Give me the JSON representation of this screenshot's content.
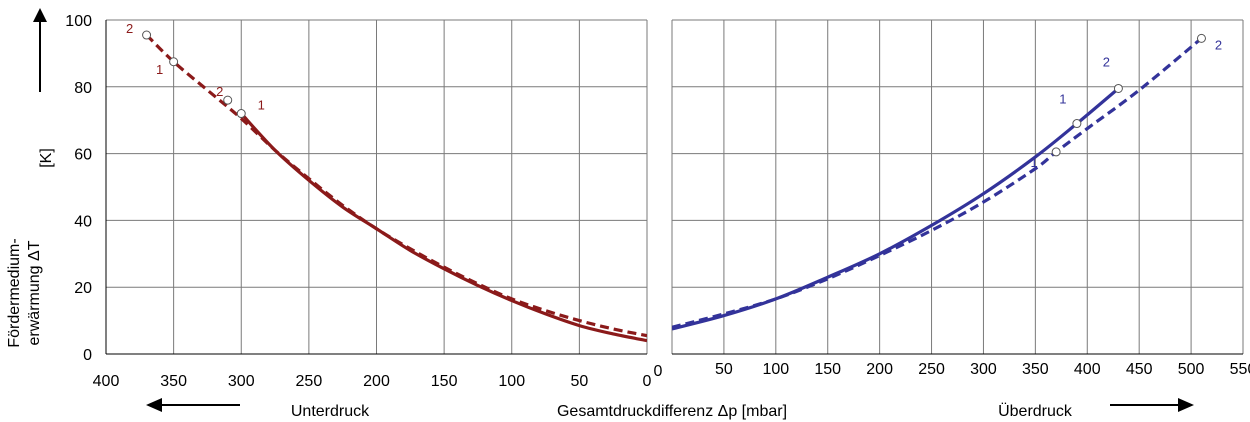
{
  "chart_data": [
    {
      "type": "line",
      "region": "unterdruck",
      "x_axis": {
        "range": [
          400,
          0
        ],
        "ticks": [
          400,
          350,
          300,
          250,
          200,
          150,
          100,
          50,
          0
        ],
        "reversed": true
      },
      "y_axis": {
        "range": [
          0,
          100
        ],
        "ticks": [
          0,
          20,
          40,
          60,
          80,
          100
        ]
      },
      "grid": true,
      "color": "#8B1A1A",
      "series": [
        {
          "style": "solid",
          "points": [
            [
              300,
              72
            ],
            [
              275,
              61
            ],
            [
              250,
              52
            ],
            [
              225,
              44
            ],
            [
              200,
              37.5
            ],
            [
              175,
              31
            ],
            [
              150,
              25.5
            ],
            [
              125,
              20.5
            ],
            [
              100,
              16
            ],
            [
              75,
              12
            ],
            [
              50,
              8.5
            ],
            [
              25,
              6
            ],
            [
              0,
              4
            ]
          ],
          "markers": [
            {
              "x": 300,
              "y": 72,
              "label": "1"
            },
            {
              "x": 310,
              "y": 76,
              "label": "2"
            }
          ]
        },
        {
          "style": "dashed",
          "points": [
            [
              370,
              95.5
            ],
            [
              350,
              87.5
            ],
            [
              325,
              79
            ],
            [
              300,
              70.5
            ],
            [
              275,
              61
            ],
            [
              250,
              52.5
            ],
            [
              225,
              44.5
            ],
            [
              200,
              37.5
            ],
            [
              175,
              31.5
            ],
            [
              150,
              26
            ],
            [
              125,
              21
            ],
            [
              100,
              16.5
            ],
            [
              75,
              13
            ],
            [
              50,
              10
            ],
            [
              25,
              7.5
            ],
            [
              0,
              5.5
            ]
          ],
          "markers": [
            {
              "x": 350,
              "y": 87.5,
              "label": "1"
            },
            {
              "x": 370,
              "y": 95.5,
              "label": "2"
            }
          ]
        }
      ]
    },
    {
      "type": "line",
      "region": "ueberdruck",
      "x_axis": {
        "range": [
          0,
          550
        ],
        "ticks": [
          0,
          50,
          100,
          150,
          200,
          250,
          300,
          350,
          400,
          450,
          500,
          550
        ]
      },
      "y_axis": {
        "range": [
          0,
          100
        ]
      },
      "grid": true,
      "color": "#33339A",
      "series": [
        {
          "style": "solid",
          "points": [
            [
              0,
              7.5
            ],
            [
              50,
              11.5
            ],
            [
              100,
              16.5
            ],
            [
              150,
              23
            ],
            [
              200,
              30
            ],
            [
              250,
              38.5
            ],
            [
              300,
              48
            ],
            [
              350,
              59
            ],
            [
              390,
              69
            ],
            [
              430,
              79.5
            ]
          ],
          "markers": [
            {
              "x": 390,
              "y": 69,
              "label": "1"
            },
            {
              "x": 430,
              "y": 79.5,
              "label": "2"
            }
          ]
        },
        {
          "style": "dashed",
          "points": [
            [
              0,
              8
            ],
            [
              50,
              12
            ],
            [
              100,
              16.5
            ],
            [
              150,
              22.5
            ],
            [
              200,
              29.5
            ],
            [
              250,
              37
            ],
            [
              300,
              45.5
            ],
            [
              350,
              55.5
            ],
            [
              370,
              60.5
            ],
            [
              400,
              67.5
            ],
            [
              450,
              79
            ],
            [
              510,
              94.5
            ]
          ],
          "markers": [
            {
              "x": 370,
              "y": 60.5,
              "label": "1"
            },
            {
              "x": 510,
              "y": 94.5,
              "label": "2"
            }
          ]
        }
      ]
    }
  ],
  "labels": {
    "y_title_1": "Fördermedium-",
    "y_title_2": "erwärmung  ΔT",
    "y_unit": "[K]",
    "x_title": "Gesamtdruckdifferenz Δp  [mbar]",
    "left_region": "Unterdruck",
    "right_region": "Überdruck"
  }
}
